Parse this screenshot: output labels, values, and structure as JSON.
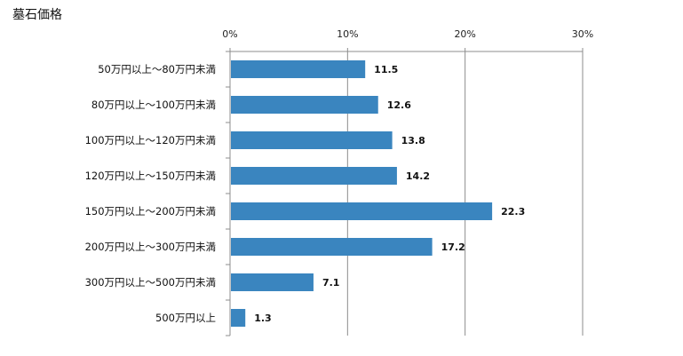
{
  "chart_data": {
    "type": "bar",
    "orientation": "horizontal",
    "title": "墓石価格",
    "xlabel": "",
    "ylabel": "",
    "xlim": [
      0,
      30
    ],
    "x_ticks": [
      0,
      10,
      20,
      30
    ],
    "x_tick_labels": [
      "0%",
      "10%",
      "20%",
      "30%"
    ],
    "x_axis_position": "top",
    "grid": true,
    "legend": "none",
    "bar_color": "#3A85BF",
    "categories": [
      "50万円以上～80万円未満",
      "80万円以上～100万円未満",
      "100万円以上～120万円未満",
      "120万円以上～150万円未満",
      "150万円以上～200万円未満",
      "200万円以上～300万円未満",
      "300万円以上～500万円未満",
      "500万円以上"
    ],
    "values": [
      11.5,
      12.6,
      13.8,
      14.2,
      22.3,
      17.2,
      7.1,
      1.3
    ],
    "data_labels": [
      "11.5",
      "12.6",
      "13.8",
      "14.2",
      "22.3",
      "17.2",
      "7.1",
      "1.3"
    ]
  }
}
